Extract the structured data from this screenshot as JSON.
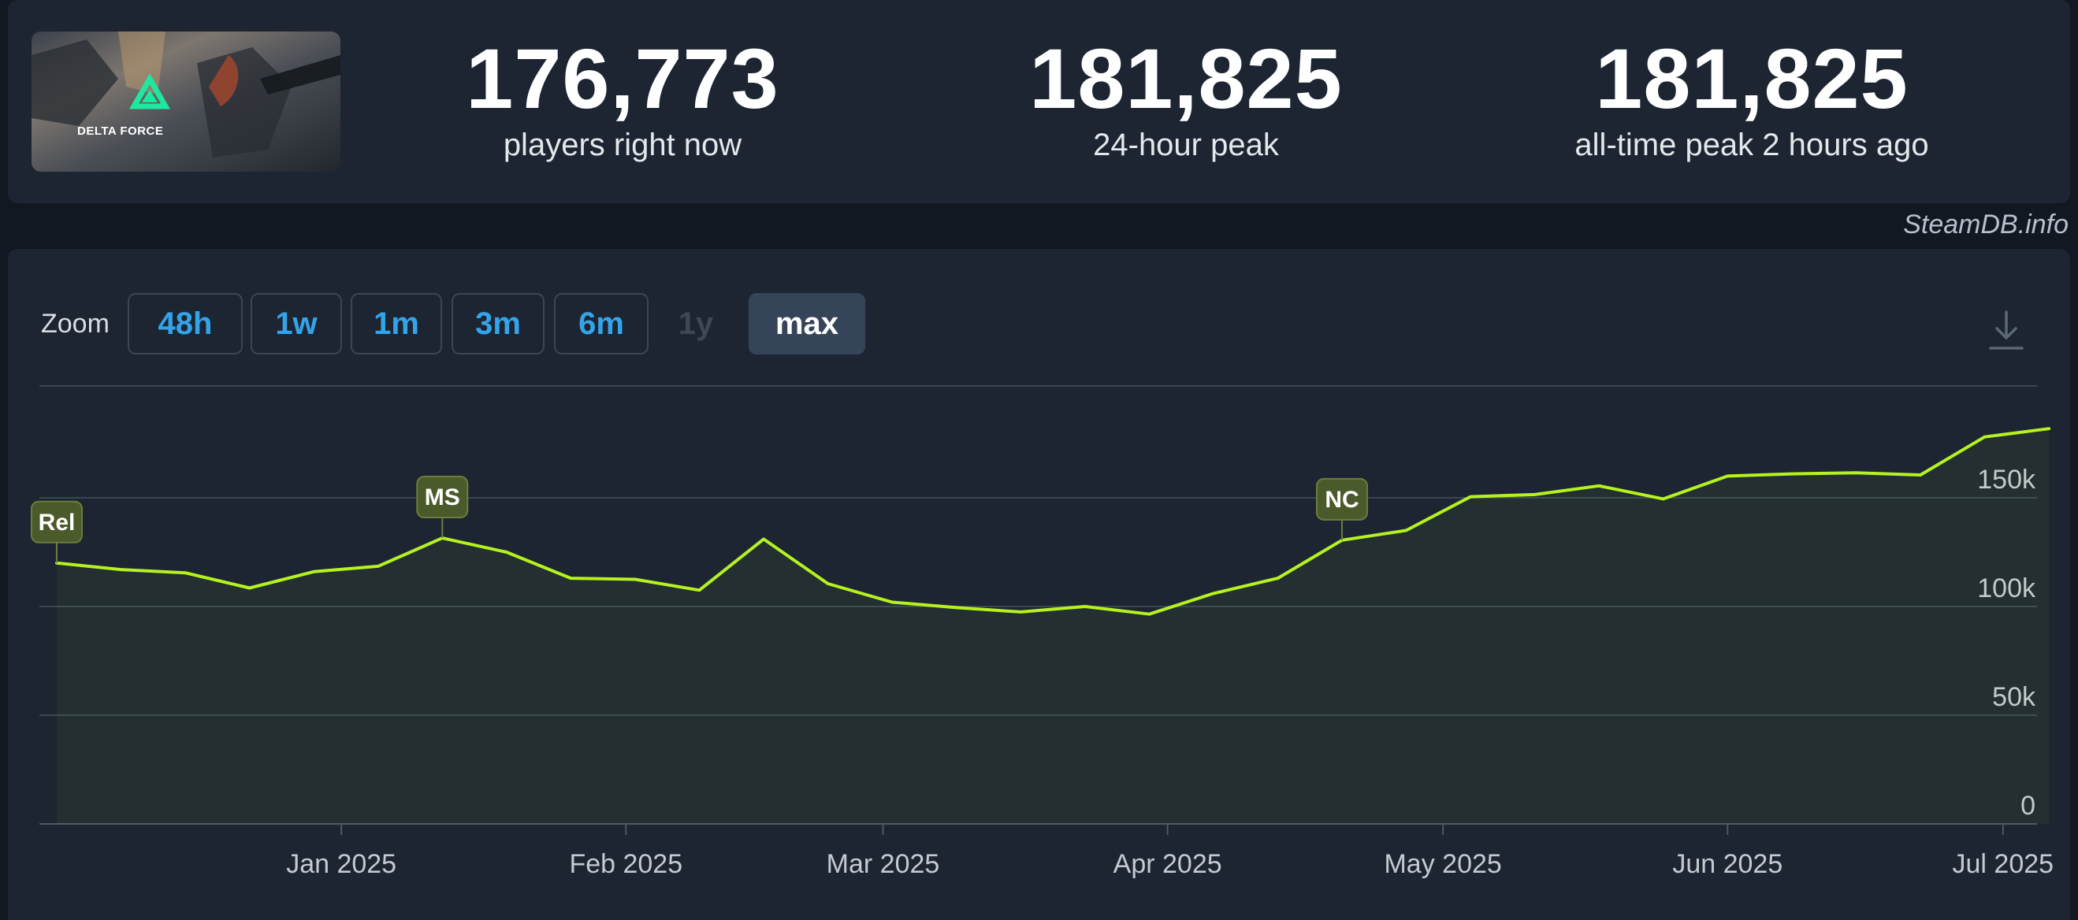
{
  "game": {
    "name": "Delta Force",
    "logo_text": "DELTA FORCE"
  },
  "stats": {
    "current": {
      "value": "176,773",
      "label": "players right now"
    },
    "peak_24h": {
      "value": "181,825",
      "label": "24-hour peak"
    },
    "all_time": {
      "value": "181,825",
      "label": "all-time peak 2 hours ago"
    }
  },
  "credit": "SteamDB.info",
  "zoom": {
    "label": "Zoom",
    "options": [
      {
        "label": "48h",
        "state": "enabled"
      },
      {
        "label": "1w",
        "state": "enabled"
      },
      {
        "label": "1m",
        "state": "enabled"
      },
      {
        "label": "3m",
        "state": "enabled"
      },
      {
        "label": "6m",
        "state": "enabled"
      },
      {
        "label": "1y",
        "state": "disabled"
      },
      {
        "label": "max",
        "state": "active"
      }
    ]
  },
  "chart_data": {
    "type": "line",
    "x_ticks": [
      "Jan 2025",
      "Feb 2025",
      "Mar 2025",
      "Apr 2025",
      "May 2025",
      "Jun 2025",
      "Jul 2025"
    ],
    "y_ticks": [
      "0",
      "50k",
      "100k",
      "150k"
    ],
    "ylim": [
      0,
      200000
    ],
    "series": [
      {
        "values": [
          [
            "2024-12-01",
            120000
          ],
          [
            "2024-12-08",
            117000
          ],
          [
            "2024-12-15",
            115500
          ],
          [
            "2024-12-22",
            108500
          ],
          [
            "2024-12-29",
            116000
          ],
          [
            "2025-01-05",
            118500
          ],
          [
            "2025-01-12",
            131500
          ],
          [
            "2025-01-19",
            125000
          ],
          [
            "2025-01-26",
            113000
          ],
          [
            "2025-02-02",
            112500
          ],
          [
            "2025-02-09",
            107500
          ],
          [
            "2025-02-16",
            131000
          ],
          [
            "2025-02-23",
            110500
          ],
          [
            "2025-03-02",
            102000
          ],
          [
            "2025-03-09",
            99500
          ],
          [
            "2025-03-16",
            97500
          ],
          [
            "2025-03-23",
            100000
          ],
          [
            "2025-03-30",
            96500
          ],
          [
            "2025-04-06",
            106000
          ],
          [
            "2025-04-13",
            113000
          ],
          [
            "2025-04-20",
            130500
          ],
          [
            "2025-04-27",
            135000
          ],
          [
            "2025-05-04",
            150500
          ],
          [
            "2025-05-11",
            151500
          ],
          [
            "2025-05-18",
            155500
          ],
          [
            "2025-05-25",
            149500
          ],
          [
            "2025-06-01",
            160000
          ],
          [
            "2025-06-08",
            161000
          ],
          [
            "2025-06-15",
            161500
          ],
          [
            "2025-06-22",
            160500
          ],
          [
            "2025-06-29",
            178000
          ],
          [
            "2025-07-06",
            181825
          ]
        ]
      }
    ],
    "markers": [
      {
        "label": "Rel",
        "date": "2024-12-01"
      },
      {
        "label": "MS",
        "date": "2025-01-12"
      },
      {
        "label": "NC",
        "date": "2025-04-20"
      }
    ],
    "grid": true,
    "colors": {
      "line": "#b5f21f",
      "fill": "#b5f21f",
      "grid": "#3a4654",
      "axis_text": "#c3cad2",
      "marker_bg": "#4b5a2a",
      "marker_border": "#6c7d3c",
      "accent": "#34a4ea"
    }
  }
}
